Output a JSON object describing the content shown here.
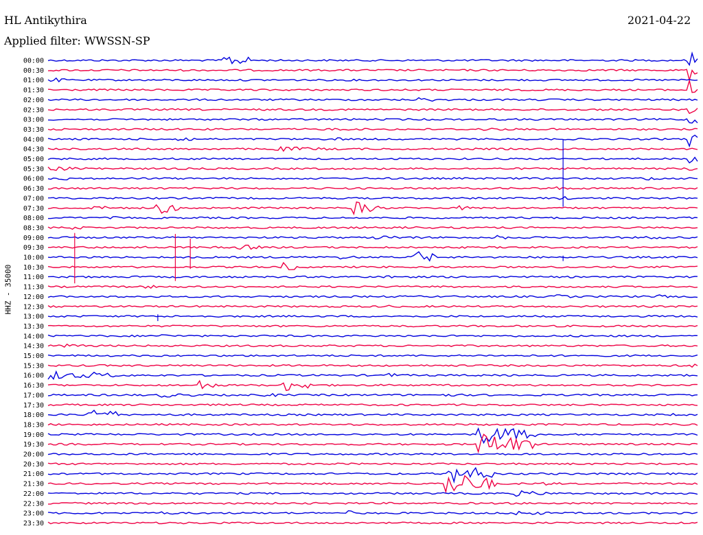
{
  "header": {
    "station": "HL Antikythira",
    "filter": "Applied filter: WWSSN-SP",
    "date": "2021-04-22",
    "channel": "HHZ - 35000"
  },
  "chart_data": {
    "type": "line",
    "subtype": "helicorder",
    "title": "HL Antikythira",
    "subtitle": "Applied filter: WWSSN-SP",
    "ylabel": "HHZ - 35000",
    "tick_labels": [
      "00:00",
      "00:30",
      "01:00",
      "01:30",
      "02:00",
      "02:30",
      "03:00",
      "03:30",
      "04:00",
      "04:30",
      "05:00",
      "05:30",
      "06:00",
      "06:30",
      "07:00",
      "07:30",
      "08:00",
      "08:30",
      "09:00",
      "09:30",
      "10:00",
      "10:30",
      "11:00",
      "11:30",
      "12:00",
      "12:30",
      "13:00",
      "13:30",
      "14:00",
      "14:30",
      "15:00",
      "15:30",
      "16:00",
      "16:30",
      "17:00",
      "17:30",
      "18:00",
      "18:30",
      "19:00",
      "19:30",
      "20:00",
      "20:30",
      "21:00",
      "21:30",
      "22:00",
      "22:30",
      "23:00",
      "23:30"
    ],
    "trace_colors": [
      "#0000dd",
      "#ee0044"
    ],
    "grid": false,
    "events": [
      {
        "row": 0,
        "t": 0.27,
        "amp": 1.3,
        "dur": 0.05
      },
      {
        "row": 0,
        "t": 0.985,
        "amp": 2.2,
        "dur": 0.015
      },
      {
        "row": 1,
        "t": 0.985,
        "amp": 2.5,
        "dur": 0.015
      },
      {
        "row": 2,
        "t": 0.0,
        "amp": 0.6,
        "dur": 0.03
      },
      {
        "row": 3,
        "t": 0.985,
        "amp": 2.5,
        "dur": 0.015
      },
      {
        "row": 4,
        "t": 0.485,
        "amp": 0.4,
        "dur": 0.01
      },
      {
        "row": 4,
        "t": 0.57,
        "amp": 0.5,
        "dur": 0.04
      },
      {
        "row": 4,
        "t": 0.15,
        "amp": 0.3,
        "dur": 0.02
      },
      {
        "row": 5,
        "t": 0.985,
        "amp": 2.5,
        "dur": 0.015
      },
      {
        "row": 6,
        "t": 0.985,
        "amp": 2.3,
        "dur": 0.015
      },
      {
        "row": 7,
        "t": 0.43,
        "amp": 0.4,
        "dur": 0.03
      },
      {
        "row": 7,
        "t": 0.66,
        "amp": 0.3,
        "dur": 0.1
      },
      {
        "row": 8,
        "t": 0.2,
        "amp": 0.6,
        "dur": 0.03
      },
      {
        "row": 8,
        "t": 0.44,
        "amp": 0.4,
        "dur": 0.03
      },
      {
        "row": 8,
        "t": 0.985,
        "amp": 2.0,
        "dur": 0.015
      },
      {
        "row": 9,
        "t": 0.35,
        "amp": 0.5,
        "dur": 0.1
      },
      {
        "row": 10,
        "t": 0.985,
        "amp": 1.8,
        "dur": 0.015
      },
      {
        "row": 11,
        "t": 0.0,
        "amp": 0.4,
        "dur": 0.15
      },
      {
        "row": 11,
        "t": 0.985,
        "amp": 0.6,
        "dur": 0.015
      },
      {
        "row": 12,
        "t": 0.02,
        "amp": 0.4,
        "dur": 0.04
      },
      {
        "row": 12,
        "t": 0.91,
        "amp": 0.5,
        "dur": 0.04
      },
      {
        "row": 13,
        "t": 0.78,
        "amp": 0.4,
        "dur": 0.03
      },
      {
        "row": 14,
        "t": 0.78,
        "amp": 0.5,
        "dur": 0.03
      },
      {
        "row": 15,
        "t": 0.06,
        "amp": 0.5,
        "dur": 0.06
      },
      {
        "row": 15,
        "t": 0.16,
        "amp": 1.5,
        "dur": 0.04
      },
      {
        "row": 15,
        "t": 0.47,
        "amp": 1.5,
        "dur": 0.04
      },
      {
        "row": 15,
        "t": 0.63,
        "amp": 0.5,
        "dur": 0.03
      },
      {
        "row": 16,
        "t": 0.1,
        "amp": 0.3,
        "dur": 0.04
      },
      {
        "row": 17,
        "t": 0.03,
        "amp": 0.4,
        "dur": 0.04
      },
      {
        "row": 17,
        "t": 0.55,
        "amp": 0.3,
        "dur": 0.06
      },
      {
        "row": 18,
        "t": 0.5,
        "amp": 0.4,
        "dur": 0.1
      },
      {
        "row": 18,
        "t": 0.69,
        "amp": 0.5,
        "dur": 0.03
      },
      {
        "row": 18,
        "t": 0.91,
        "amp": 0.5,
        "dur": 0.04
      },
      {
        "row": 19,
        "t": 0.29,
        "amp": 0.6,
        "dur": 0.05
      },
      {
        "row": 19,
        "t": 0.13,
        "amp": 0.3,
        "dur": 0.05
      },
      {
        "row": 20,
        "t": 0.45,
        "amp": 0.4,
        "dur": 0.04
      },
      {
        "row": 20,
        "t": 0.56,
        "amp": 1.5,
        "dur": 0.04
      },
      {
        "row": 21,
        "t": 0.36,
        "amp": 1.0,
        "dur": 0.03
      },
      {
        "row": 22,
        "t": 0.52,
        "amp": 0.6,
        "dur": 0.03
      },
      {
        "row": 23,
        "t": 0.15,
        "amp": 0.4,
        "dur": 0.03
      },
      {
        "row": 24,
        "t": 0.78,
        "amp": 0.5,
        "dur": 0.03
      },
      {
        "row": 24,
        "t": 0.93,
        "amp": 0.5,
        "dur": 0.03
      },
      {
        "row": 25,
        "t": 0.52,
        "amp": 0.3,
        "dur": 0.04
      },
      {
        "row": 28,
        "t": 0.17,
        "amp": 0.4,
        "dur": 0.04
      },
      {
        "row": 29,
        "t": 0.02,
        "amp": 0.5,
        "dur": 0.04
      },
      {
        "row": 31,
        "t": 0.985,
        "amp": 1.0,
        "dur": 0.015
      },
      {
        "row": 32,
        "t": 0.0,
        "amp": 1.0,
        "dur": 0.06
      },
      {
        "row": 32,
        "t": 0.06,
        "amp": 0.8,
        "dur": 0.05
      },
      {
        "row": 32,
        "t": 0.52,
        "amp": 0.5,
        "dur": 0.03
      },
      {
        "row": 33,
        "t": 0.23,
        "amp": 1.2,
        "dur": 0.03
      },
      {
        "row": 33,
        "t": 0.36,
        "amp": 1.4,
        "dur": 0.05
      },
      {
        "row": 34,
        "t": 0.17,
        "amp": 0.5,
        "dur": 0.07
      },
      {
        "row": 34,
        "t": 0.33,
        "amp": 0.4,
        "dur": 0.05
      },
      {
        "row": 34,
        "t": 0.6,
        "amp": 0.4,
        "dur": 0.05
      },
      {
        "row": 36,
        "t": 0.06,
        "amp": 1.5,
        "dur": 0.05
      },
      {
        "row": 36,
        "t": 0.96,
        "amp": 0.3,
        "dur": 0.02
      },
      {
        "row": 38,
        "t": 0.66,
        "amp": 2.0,
        "dur": 0.09
      },
      {
        "row": 39,
        "t": 0.66,
        "amp": 2.5,
        "dur": 0.09
      },
      {
        "row": 42,
        "t": 0.16,
        "amp": 0.3,
        "dur": 0.01
      },
      {
        "row": 42,
        "t": 0.61,
        "amp": 2.0,
        "dur": 0.08
      },
      {
        "row": 43,
        "t": 0.61,
        "amp": 2.5,
        "dur": 0.08
      },
      {
        "row": 43,
        "t": 0.76,
        "amp": 0.4,
        "dur": 0.03
      },
      {
        "row": 44,
        "t": 0.72,
        "amp": 0.6,
        "dur": 0.06
      },
      {
        "row": 46,
        "t": 0.16,
        "amp": 0.4,
        "dur": 0.05
      },
      {
        "row": 46,
        "t": 0.46,
        "amp": 0.8,
        "dur": 0.01
      },
      {
        "row": 46,
        "t": 0.72,
        "amp": 0.5,
        "dur": 0.06
      }
    ],
    "spikes": [
      {
        "row": 19,
        "t": 0.041,
        "amp": 7.5
      },
      {
        "row": 19,
        "t": 0.196,
        "amp": 7.0
      },
      {
        "row": 19,
        "t": 0.219,
        "amp": 4.5
      },
      {
        "row": 10,
        "t": 0.793,
        "amp": 10.0
      },
      {
        "row": 20,
        "t": 0.793,
        "amp": 0.8
      },
      {
        "row": 26,
        "t": 0.169,
        "amp": 1.0
      }
    ]
  }
}
